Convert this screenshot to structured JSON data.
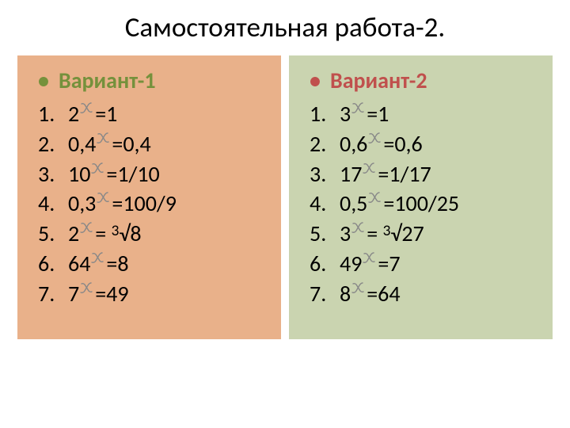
{
  "title": "Самостоятельная работа-2.",
  "exp_icon_color": "#888888",
  "columns": [
    {
      "bg": "#e9b18a",
      "variant_label": "Вариант-1",
      "variant_color": "#75913c",
      "items": [
        {
          "n": "1.",
          "base": "2",
          "rhs": "=1"
        },
        {
          "n": "2.",
          "base": "0,4",
          "rhs": "=0,4"
        },
        {
          "n": "3.",
          "base": "10",
          "rhs": "=1/10"
        },
        {
          "n": "4.",
          "base": "0,3",
          "rhs": "=100/9"
        },
        {
          "n": "5.",
          "base": "2",
          "rhs": "= ³√8"
        },
        {
          "n": "6.",
          "base": "64",
          "rhs": "=8"
        },
        {
          "n": "7.",
          "base": "7",
          "rhs": "=49"
        }
      ]
    },
    {
      "bg": "#cad4b0",
      "variant_label": "Вариант-2",
      "variant_color": "#c0504d",
      "items": [
        {
          "n": "1.",
          "base": "3",
          "rhs": "=1"
        },
        {
          "n": "2.",
          "base": "0,6",
          "rhs": "=0,6"
        },
        {
          "n": "3.",
          "base": "17",
          "rhs": "=1/17"
        },
        {
          "n": "4.",
          "base": "0,5",
          "rhs": "=100/25"
        },
        {
          "n": "5.",
          "base": "3",
          "rhs": "= ³√27"
        },
        {
          "n": "6.",
          "base": "49",
          "rhs": "=7"
        },
        {
          "n": "7.",
          "base": "8",
          "rhs": "=64"
        }
      ]
    }
  ]
}
